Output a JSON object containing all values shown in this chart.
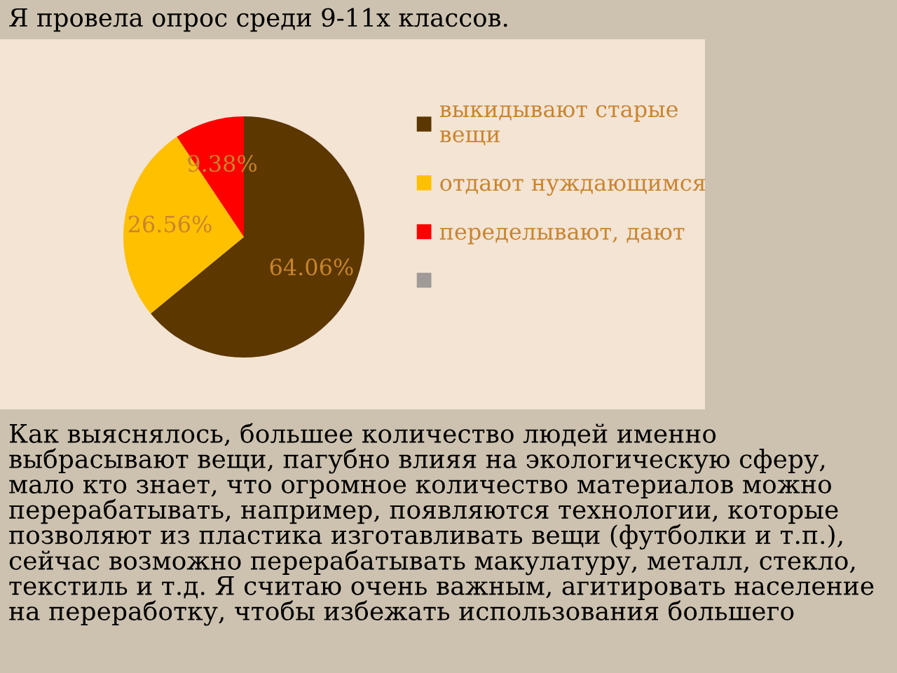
{
  "chart_data": {
    "type": "pie",
    "title": "Я провела опрос среди 9-11х классов.",
    "categories": [
      "выкидывают старые вещи",
      "отдают нуждающимся",
      "переделывают, дают",
      null
    ],
    "values": [
      64.06,
      26.56,
      9.38,
      0
    ],
    "colors": [
      "#5c3700",
      "#ffc000",
      "#ff0000",
      "#a09a98"
    ],
    "value_labels": [
      "64.06%",
      "26.56%",
      "9.38%",
      null
    ],
    "legend": "right",
    "annotations": [
      "Как выяснялось, большее количество людей именно выбрасывают вещи, пагубно влияя на экологическую сферу, мало кто знает, что огромное количество материалов можно перерабатывать, например, появляются технологии, которые позволяют из пластика изготавливать вещи (футболки и т.п.), сейчас возможно перерабатывать макулатуру, металл, стекло, текстиль и т.д. Я считаю очень важным, агитировать население на переработку, чтобы избежать использования большего"
    ]
  }
}
